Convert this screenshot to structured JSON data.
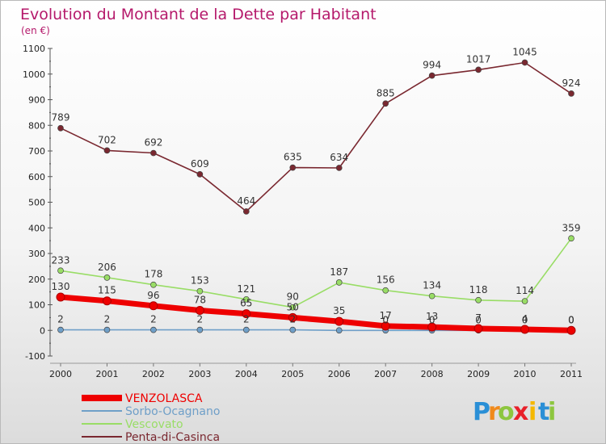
{
  "chart_data": {
    "type": "line",
    "title": "Evolution du Montant de la Dette par Habitant",
    "subtitle": "(en €)",
    "x": [
      "2000",
      "2001",
      "2002",
      "2003",
      "2004",
      "2005",
      "2006",
      "2007",
      "2008",
      "2009",
      "2010",
      "2011"
    ],
    "ylim": [
      -100,
      1100
    ],
    "yticks": [
      -100,
      0,
      100,
      200,
      300,
      400,
      500,
      600,
      700,
      800,
      900,
      1000,
      1100
    ],
    "grid": false,
    "legend_position": "bottom-left",
    "series": [
      {
        "name": "VENZOLASCA",
        "color": "#ee0000",
        "values": [
          130,
          115,
          96,
          78,
          65,
          50,
          35,
          17,
          13,
          7,
          4,
          0
        ],
        "labels": [
          "130",
          "115",
          "96",
          "78",
          "65",
          "50",
          "35",
          "17",
          "13",
          "7",
          "4",
          "0"
        ]
      },
      {
        "name": "Sorbo-Ocagnano",
        "color": "#6f9fc8",
        "values": [
          2,
          2,
          2,
          2,
          2,
          2,
          0,
          0,
          0,
          0,
          0,
          0
        ],
        "labels": [
          "2",
          "2",
          "2",
          "2",
          "2",
          "2",
          "",
          "0",
          "0",
          "0",
          "0",
          "0"
        ]
      },
      {
        "name": "Vescovato",
        "color": "#99dd66",
        "values": [
          233,
          206,
          178,
          153,
          121,
          90,
          187,
          156,
          134,
          118,
          114,
          359
        ],
        "labels": [
          "233",
          "206",
          "178",
          "153",
          "121",
          "90",
          "187",
          "156",
          "134",
          "118",
          "114",
          "359"
        ]
      },
      {
        "name": "Penta-di-Casinca",
        "color": "#7a2830",
        "values": [
          789,
          702,
          692,
          609,
          464,
          635,
          634,
          885,
          994,
          1017,
          1045,
          924
        ],
        "labels": [
          "789",
          "702",
          "692",
          "609",
          "464",
          "635",
          "634",
          "885",
          "994",
          "1017",
          "1045",
          "924"
        ]
      }
    ]
  },
  "logo": {
    "text": "Proxiti",
    "letters": [
      {
        "ch": "P",
        "color": "#2a8fd6"
      },
      {
        "ch": "r",
        "color": "#f08a1c"
      },
      {
        "ch": "o",
        "color": "#8dc63f"
      },
      {
        "ch": "x",
        "color": "#e8202a"
      },
      {
        "ch": "i",
        "color": "#f5b800"
      },
      {
        "ch": "t",
        "color": "#2a8fd6"
      },
      {
        "ch": "i",
        "color": "#8dc63f"
      }
    ]
  }
}
